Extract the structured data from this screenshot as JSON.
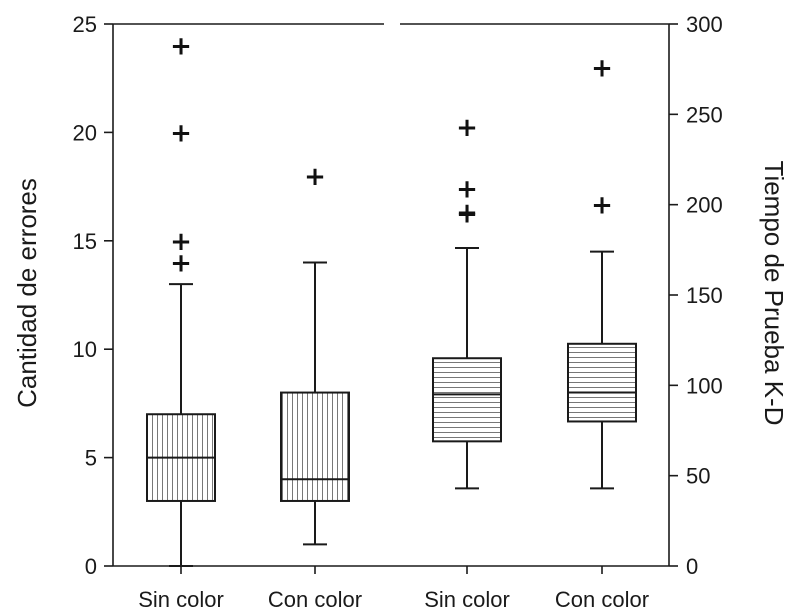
{
  "chart_data": {
    "type": "box",
    "grid": false,
    "legend": "none",
    "categories": [
      "Sin color",
      "Con color",
      "Sin color",
      "Con color"
    ],
    "left_axis": {
      "label": "Cantidad de errores",
      "range": [
        0,
        25
      ],
      "ticks": [
        0,
        5,
        10,
        15,
        20,
        25
      ]
    },
    "right_axis": {
      "label": "Tiempo de Prueba K-D",
      "range": [
        0,
        300
      ],
      "ticks": [
        0,
        50,
        100,
        150,
        200,
        250,
        300
      ]
    },
    "series": [
      {
        "axis": "left",
        "hatch": "vertical",
        "boxes": [
          {
            "category": "Sin color",
            "whisker_low": 0,
            "q1": 3,
            "median": 5,
            "q3": 7,
            "whisker_high": 13,
            "outliers": [
              14,
              15,
              20,
              24
            ]
          },
          {
            "category": "Con color",
            "whisker_low": 1,
            "q1": 3,
            "median": 4,
            "q3": 8,
            "whisker_high": 14,
            "outliers": [
              18
            ]
          }
        ]
      },
      {
        "axis": "right",
        "hatch": "horizontal",
        "boxes": [
          {
            "category": "Sin color",
            "whisker_low": 43,
            "q1": 69,
            "median": 95,
            "q3": 115,
            "whisker_high": 176,
            "outliers": [
              195,
              196,
              209,
              243
            ]
          },
          {
            "category": "Con color",
            "whisker_low": 43,
            "q1": 80,
            "median": 96,
            "q3": 123,
            "whisker_high": 174,
            "outliers": [
              200,
              276
            ]
          }
        ]
      }
    ]
  }
}
